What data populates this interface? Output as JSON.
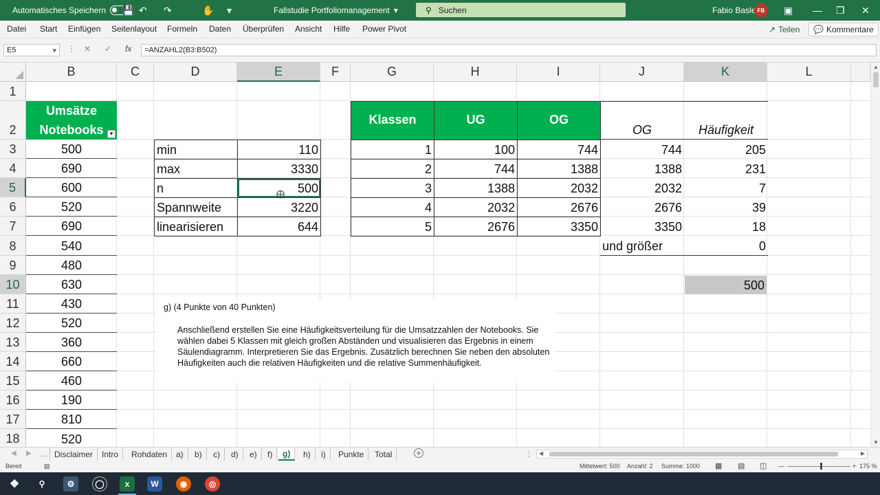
{
  "titlebar": {
    "autosave_label": "Automatisches Speichern",
    "doc_title": "Fallstudie Portfoliomanagement",
    "search_placeholder": "Suchen",
    "user_name": "Fabio Basler",
    "user_initials": "FB"
  },
  "ribbon": {
    "tabs": [
      "Datei",
      "Start",
      "Einfügen",
      "Seitenlayout",
      "Formeln",
      "Daten",
      "Überprüfen",
      "Ansicht",
      "Hilfe",
      "Power Pivot"
    ],
    "share_label": "Teilen",
    "comments_label": "Kommentare"
  },
  "formula_bar": {
    "name_box": "E5",
    "formula": "=ANZAHL2(B3:B502)"
  },
  "columns": [
    "B",
    "C",
    "D",
    "E",
    "F",
    "G",
    "H",
    "I",
    "J",
    "K",
    "L"
  ],
  "rows": [
    "1",
    "2",
    "3",
    "4",
    "5",
    "6",
    "7",
    "8",
    "9",
    "10",
    "11",
    "12",
    "13",
    "14",
    "15",
    "16",
    "17",
    "18"
  ],
  "selected_cell": {
    "col": "E",
    "row": "5",
    "extra_col": "K",
    "extra_row": "10"
  },
  "cells": {
    "B2": "Umsätze Notebooks",
    "B": [
      "500",
      "690",
      "600",
      "520",
      "690",
      "540",
      "480",
      "630",
      "430",
      "520",
      "360",
      "660",
      "460",
      "190",
      "810",
      "520"
    ],
    "D": [
      "min",
      "max",
      "n",
      "Spannweite",
      "linearisieren"
    ],
    "E": [
      "110",
      "3330",
      "500",
      "3220",
      "644"
    ],
    "G2": "Klassen",
    "H2": "UG",
    "I2": "OG",
    "G": [
      "1",
      "2",
      "3",
      "4",
      "5"
    ],
    "H": [
      "100",
      "744",
      "1388",
      "2032",
      "2676"
    ],
    "I": [
      "744",
      "1388",
      "2032",
      "2676",
      "3350"
    ],
    "J2": "OG",
    "K2": "Häufigkeit",
    "J": [
      "744",
      "1388",
      "2032",
      "2676",
      "3350",
      "und größer"
    ],
    "K": [
      "205",
      "231",
      "7",
      "39",
      "18",
      "0"
    ],
    "K10": "500"
  },
  "task_text": {
    "heading": "g)   (4 Punkte von 40 Punkten)",
    "body": "Anschließend erstellen Sie eine Häufigkeitsverteilung für die Umsatzzahlen der Notebooks. Sie wählen dabei 5 Klassen mit gleich großen Abständen und visualisieren das Ergebnis in einem Säulendiagramm. Interpretieren Sie das Ergebnis. Zusätzlich berechnen Sie neben den absoluten Häufigkeiten auch die relativen Häufigkeiten und die relative Summenhäufigkeit."
  },
  "sheet_tabs": [
    "Disclaimer",
    "Intro",
    "Rohdaten",
    "a)",
    "b)",
    "c)",
    "d)",
    "e)",
    "f)",
    "g)",
    "h)",
    "i)",
    "Punkte",
    "Total"
  ],
  "active_sheet": "g)",
  "status": {
    "ready": "Bereit",
    "average": "Mittelwert: 500",
    "count": "Anzahl: 2",
    "sum": "Summe: 1000",
    "zoom": "175 %"
  },
  "colors": {
    "excel_green": "#217346",
    "header_fill": "#00b050",
    "selected_fill": "#d9d9d9"
  }
}
